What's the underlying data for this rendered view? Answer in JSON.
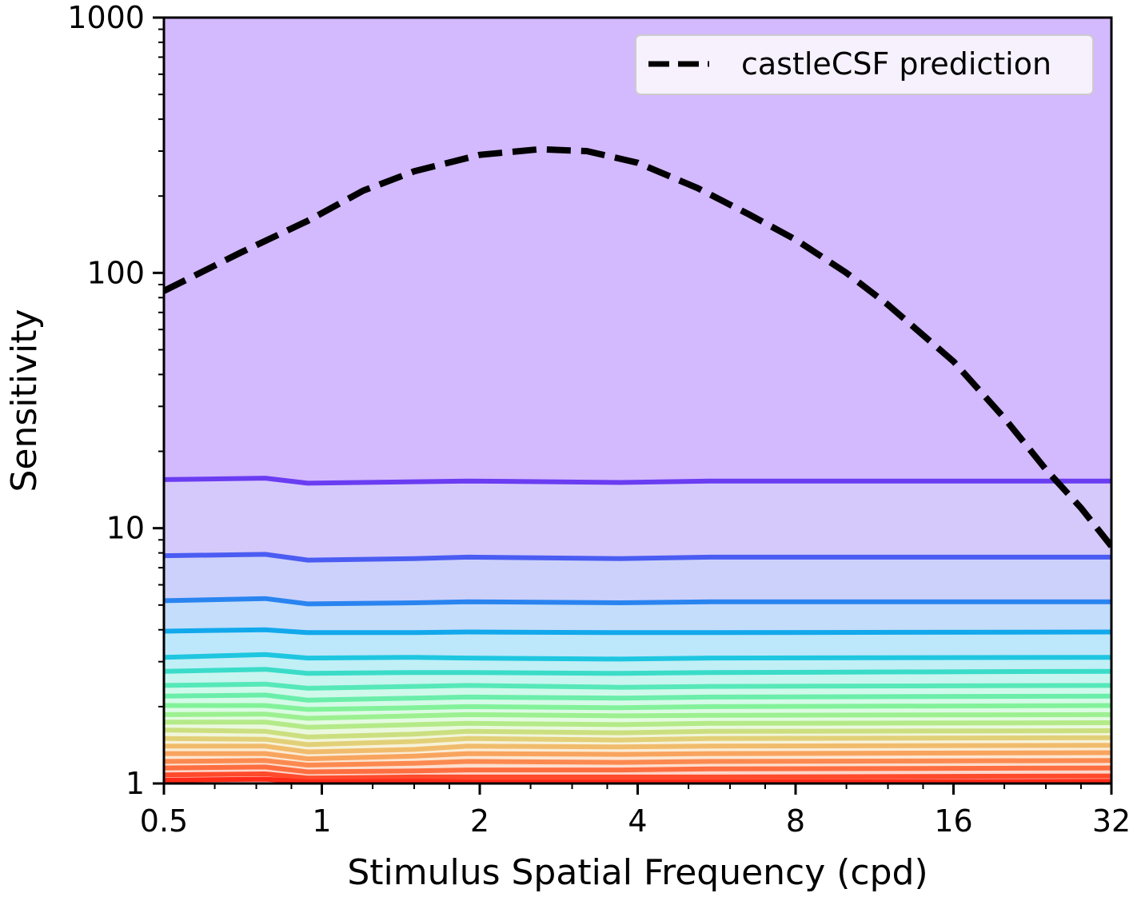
{
  "chart_data": {
    "type": "line",
    "xscale": "log2",
    "yscale": "log10",
    "xlim": [
      0.5,
      32
    ],
    "ylim": [
      1,
      1000
    ],
    "xlabel": "Stimulus Spatial Frequency (cpd)",
    "ylabel": "Sensitivity",
    "x_ticks": [
      0.5,
      1,
      2,
      4,
      8,
      16,
      32
    ],
    "x_tick_labels": [
      "0.5",
      "1",
      "2",
      "4",
      "8",
      "16",
      "32"
    ],
    "y_ticks": [
      1,
      10,
      100,
      1000
    ],
    "y_tick_labels": [
      "1",
      "10",
      "100",
      "1000"
    ],
    "legend": {
      "placement": "top-right",
      "entries": [
        "castleCSF prediction"
      ]
    },
    "prediction": {
      "name": "castleCSF prediction",
      "style": "dashed",
      "color": "#000000",
      "x": [
        0.5,
        0.7,
        0.94,
        1.2,
        1.5,
        2.0,
        2.6,
        3.2,
        4.0,
        5.2,
        6.5,
        8.0,
        10.0,
        12.0,
        16.0,
        20.0,
        24.0,
        28.0,
        32.0
      ],
      "y": [
        85,
        120,
        160,
        210,
        250,
        290,
        305,
        300,
        270,
        215,
        170,
        135,
        100,
        75,
        45,
        27,
        17,
        12,
        8.5
      ]
    },
    "contour_x": [
      0.5,
      0.78,
      0.94,
      1.5,
      1.9,
      3.7,
      5.5,
      32
    ],
    "contour_levels": [
      {
        "color": "#6a3df2",
        "y": [
          15.5,
          15.7,
          15.0,
          15.2,
          15.3,
          15.1,
          15.3,
          15.3
        ]
      },
      {
        "color": "#4a5cf2",
        "y": [
          7.8,
          7.9,
          7.5,
          7.6,
          7.7,
          7.6,
          7.7,
          7.7
        ]
      },
      {
        "color": "#2a84f0",
        "y": [
          5.2,
          5.3,
          5.05,
          5.1,
          5.15,
          5.1,
          5.15,
          5.15
        ]
      },
      {
        "color": "#12a8ec",
        "y": [
          3.95,
          4.0,
          3.9,
          3.9,
          3.92,
          3.9,
          3.9,
          3.92
        ]
      },
      {
        "color": "#1ec6e0",
        "y": [
          3.12,
          3.2,
          3.1,
          3.12,
          3.1,
          3.07,
          3.1,
          3.12
        ]
      },
      {
        "color": "#3adcc8",
        "y": [
          2.75,
          2.8,
          2.7,
          2.72,
          2.72,
          2.7,
          2.72,
          2.75
        ]
      },
      {
        "color": "#56e8b8",
        "y": [
          2.42,
          2.45,
          2.36,
          2.4,
          2.42,
          2.38,
          2.4,
          2.42
        ]
      },
      {
        "color": "#6aeeaa",
        "y": [
          2.2,
          2.22,
          2.12,
          2.16,
          2.18,
          2.16,
          2.18,
          2.2
        ]
      },
      {
        "color": "#82f29a",
        "y": [
          2.02,
          2.02,
          1.95,
          1.98,
          2.0,
          1.98,
          2.0,
          2.02
        ]
      },
      {
        "color": "#9cf090",
        "y": [
          1.86,
          1.87,
          1.8,
          1.84,
          1.86,
          1.84,
          1.85,
          1.86
        ]
      },
      {
        "color": "#b4ea88",
        "y": [
          1.74,
          1.74,
          1.66,
          1.7,
          1.72,
          1.7,
          1.72,
          1.73
        ]
      },
      {
        "color": "#ccdf80",
        "y": [
          1.62,
          1.6,
          1.52,
          1.56,
          1.6,
          1.58,
          1.6,
          1.61
        ]
      },
      {
        "color": "#e2d078",
        "y": [
          1.5,
          1.49,
          1.42,
          1.46,
          1.5,
          1.48,
          1.5,
          1.51
        ]
      },
      {
        "color": "#f0bc6c",
        "y": [
          1.4,
          1.4,
          1.33,
          1.36,
          1.4,
          1.39,
          1.4,
          1.41
        ]
      },
      {
        "color": "#f8a45e",
        "y": [
          1.31,
          1.31,
          1.25,
          1.28,
          1.31,
          1.3,
          1.31,
          1.32
        ]
      },
      {
        "color": "#fc8a50",
        "y": [
          1.22,
          1.23,
          1.18,
          1.2,
          1.22,
          1.21,
          1.22,
          1.23
        ]
      },
      {
        "color": "#fe6e40",
        "y": [
          1.15,
          1.16,
          1.11,
          1.12,
          1.13,
          1.13,
          1.14,
          1.15
        ]
      },
      {
        "color": "#ff4a2c",
        "y": [
          1.08,
          1.09,
          1.05,
          1.06,
          1.06,
          1.06,
          1.06,
          1.07
        ]
      },
      {
        "color": "#ff2a18",
        "y": [
          1.03,
          1.04,
          1.015,
          1.02,
          1.015,
          1.015,
          1.015,
          1.02
        ]
      }
    ],
    "top_region_color": "#d3b9fd",
    "grid": false
  }
}
